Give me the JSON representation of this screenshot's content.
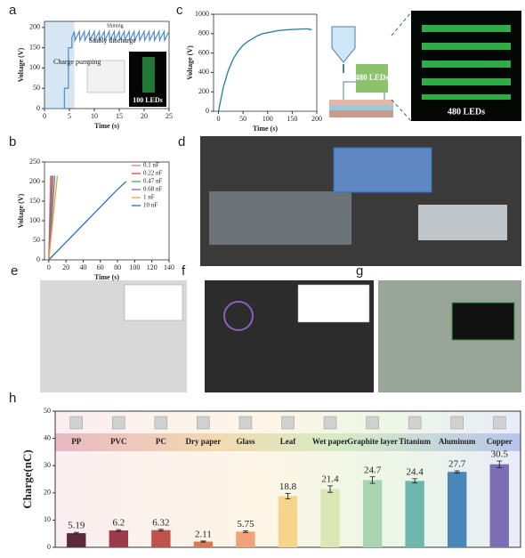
{
  "labels": {
    "a": "a",
    "b": "b",
    "c": "c",
    "d": "d",
    "e": "e",
    "f": "f",
    "g": "g",
    "h": "h",
    "led_box": "480 LEDs",
    "led_photo_c": "480 LEDs",
    "led_photo_a": "100 LEDs"
  },
  "chart_data": [
    {
      "type": "line",
      "xlabel": "Time (s)",
      "ylabel": "Voltage (V)",
      "xlim": [
        0,
        25
      ],
      "ylim": [
        0,
        215
      ],
      "xticks": [
        0,
        5,
        10,
        15,
        20,
        25
      ],
      "yticks": [
        0,
        50,
        100,
        150,
        200
      ],
      "color": "#5a8fc8",
      "shaded_region": [
        0,
        6
      ],
      "annotations": [
        "Charge pumping",
        "Stably discharge",
        "Shining"
      ],
      "x": [
        0,
        4,
        4,
        4.8,
        4.8,
        5.5,
        5.5,
        6,
        6.1,
        7,
        7.1,
        8,
        8.1,
        9,
        9.1,
        10,
        10.1,
        11,
        11.1,
        12,
        12.1,
        13,
        13.1,
        14,
        14.1,
        15,
        15.1,
        16,
        16.1,
        17,
        17.1,
        18,
        18.1,
        19,
        19.1,
        20,
        20.1,
        21,
        21.1,
        22,
        22.1,
        23,
        23.1,
        24,
        24.1,
        25
      ],
      "values": [
        0,
        0,
        50,
        50,
        150,
        150,
        175,
        190,
        168,
        190,
        168,
        190,
        168,
        190,
        168,
        190,
        168,
        190,
        168,
        190,
        168,
        190,
        168,
        190,
        168,
        190,
        168,
        190,
        168,
        190,
        168,
        190,
        168,
        190,
        168,
        190,
        168,
        190,
        168,
        190,
        168,
        190,
        168,
        190,
        168,
        190
      ]
    },
    {
      "type": "line",
      "xlabel": "Time (s)",
      "ylabel": "Voltage (V)",
      "xlim": [
        -5,
        140
      ],
      "ylim": [
        0,
        250
      ],
      "xticks": [
        0,
        20,
        40,
        60,
        80,
        100,
        120,
        140
      ],
      "yticks": [
        0,
        50,
        100,
        150,
        200,
        250
      ],
      "legend": "top-right",
      "series": [
        {
          "name": "0.1 nF",
          "color": "#e76fa8",
          "x": [
            0,
            2
          ],
          "values": [
            0,
            215
          ]
        },
        {
          "name": "0.22 nF",
          "color": "#d9434a",
          "x": [
            0,
            3.5
          ],
          "values": [
            0,
            215
          ]
        },
        {
          "name": "0.47 nF",
          "color": "#4caf50",
          "x": [
            0,
            5
          ],
          "values": [
            0,
            215
          ]
        },
        {
          "name": "0.68 nF",
          "color": "#8e5fbf",
          "x": [
            0,
            7
          ],
          "values": [
            0,
            215
          ]
        },
        {
          "name": "1 nF",
          "color": "#e8a33d",
          "x": [
            0,
            10
          ],
          "values": [
            0,
            215
          ]
        },
        {
          "name": "10 nF",
          "color": "#2f6db5",
          "x": [
            0,
            20,
            40,
            60,
            80,
            90
          ],
          "values": [
            0,
            45,
            90,
            135,
            180,
            200
          ]
        }
      ]
    },
    {
      "type": "line",
      "xlabel": "Time (s)",
      "ylabel": "Voltage (V)",
      "xlim": [
        -10,
        200
      ],
      "ylim": [
        0,
        1000
      ],
      "xticks": [
        0,
        50,
        100,
        150,
        200
      ],
      "yticks": [
        0,
        200,
        400,
        600,
        800,
        1000
      ],
      "color": "#1e7fa0",
      "x": [
        0,
        10,
        20,
        30,
        40,
        50,
        60,
        70,
        80,
        90,
        100,
        120,
        140,
        160,
        180,
        190
      ],
      "values": [
        0,
        250,
        420,
        540,
        620,
        680,
        720,
        750,
        780,
        800,
        810,
        830,
        840,
        845,
        850,
        840
      ]
    },
    {
      "type": "bar",
      "ylabel": "Charge(nC)",
      "ylim": [
        0,
        50
      ],
      "yticks": [
        0,
        10,
        20,
        30,
        40,
        50
      ],
      "categories": [
        "PP",
        "PVC",
        "PC",
        "Dry paper",
        "Glass",
        "Leaf",
        "Wet paper",
        "Graphite layer",
        "Titanium",
        "Aluminum",
        "Copper"
      ],
      "values": [
        5.19,
        6.2,
        6.32,
        2.11,
        5.75,
        18.8,
        21.4,
        24.7,
        24.4,
        27.7,
        30.5
      ],
      "errors": [
        0.3,
        0.3,
        0.3,
        0.2,
        0.3,
        1.0,
        1.2,
        1.2,
        0.8,
        0.4,
        1.2
      ],
      "colors": [
        "#5c2a3a",
        "#9b3a4a",
        "#c0524e",
        "#d9794e",
        "#f0a27a",
        "#f6d48a",
        "#dbe8b5",
        "#a8d5b0",
        "#6fb7ad",
        "#4a86b8",
        "#7a6fb5"
      ]
    }
  ]
}
